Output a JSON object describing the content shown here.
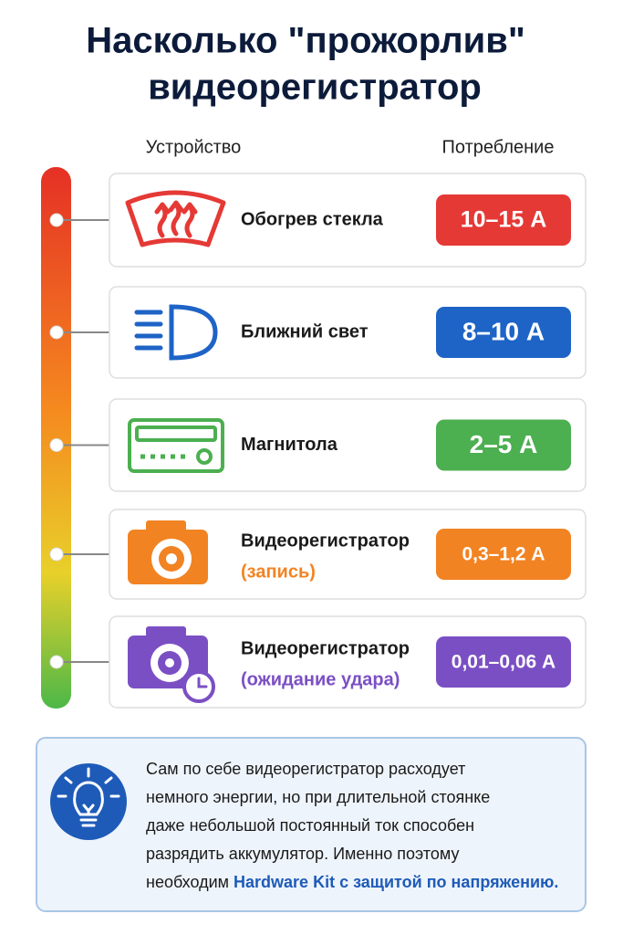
{
  "header": {
    "title_lines": [
      "Насколько \"прожорлив\"",
      "видеорегистратор"
    ],
    "col_device": "Устройство",
    "col_consumption": "Потребление"
  },
  "rows": [
    {
      "name": "Обогрев стекла",
      "value": "10–15 А",
      "color": "#e53935"
    },
    {
      "name": "Ближний свет",
      "value": "8–10 А",
      "color": "#1e63c6"
    },
    {
      "name": "Магнитола",
      "value": "2–5 А",
      "color": "#4caf50"
    },
    {
      "name": "Видеорегистратор",
      "note": "(запись)",
      "value": "0,3–1,2 А",
      "color": "#f28322"
    },
    {
      "name": "Видеорегистратор",
      "note": "(ожидание удара)",
      "value": "0,01–0,06 А",
      "color": "#7b4fc4"
    }
  ],
  "note": {
    "lines": [
      "Сам по себе видеорегистратор расходует",
      "немного энергии, но при длительной стоянке",
      "даже небольшой постоянный ток способен",
      "разрядить аккумулятор. Именно поэтому"
    ],
    "last": "необходим",
    "highlight": "Hardware Kit с защитой по напряжению."
  }
}
